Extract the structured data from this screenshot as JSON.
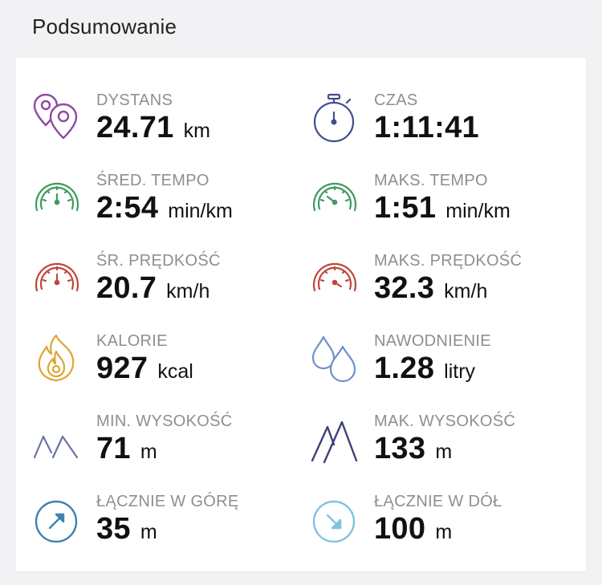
{
  "section": {
    "title": "Podsumowanie"
  },
  "colors": {
    "distance": "#8e4aa3",
    "time": "#3f4d8c",
    "pace": "#3e9a5e",
    "speed": "#c0463b",
    "calories": "#e0a431",
    "hydration": "#6f8fd0",
    "elevation_min": "#6a74a3",
    "elevation_max": "#3d4177",
    "ascent": "#3d82b0",
    "descent": "#7fc3dc"
  },
  "stats": [
    {
      "key": "distance",
      "label": "DYSTANS",
      "value": "24.71",
      "unit": "km",
      "icon": "map-pins-icon"
    },
    {
      "key": "time",
      "label": "CZAS",
      "value": "1:11:41",
      "unit": "",
      "icon": "stopwatch-icon"
    },
    {
      "key": "avg_pace",
      "label": "ŚRED. TEMPO",
      "value": "2:54",
      "unit": "min/km",
      "icon": "gauge-icon"
    },
    {
      "key": "max_pace",
      "label": "MAKS. TEMPO",
      "value": "1:51",
      "unit": "min/km",
      "icon": "gauge-icon"
    },
    {
      "key": "avg_speed",
      "label": "ŚR. PRĘDKOŚĆ",
      "value": "20.7",
      "unit": "km/h",
      "icon": "gauge-icon"
    },
    {
      "key": "max_speed",
      "label": "MAKS. PRĘDKOŚĆ",
      "value": "32.3",
      "unit": "km/h",
      "icon": "gauge-icon"
    },
    {
      "key": "calories",
      "label": "KALORIE",
      "value": "927",
      "unit": "kcal",
      "icon": "flame-icon"
    },
    {
      "key": "hydration",
      "label": "NAWODNIENIE",
      "value": "1.28",
      "unit": "litry",
      "icon": "water-drops-icon"
    },
    {
      "key": "min_elevation",
      "label": "MIN. WYSOKOŚĆ",
      "value": "71",
      "unit": "m",
      "icon": "mountains-icon"
    },
    {
      "key": "max_elevation",
      "label": "MAK. WYSOKOŚĆ",
      "value": "133",
      "unit": "m",
      "icon": "mountains-icon"
    },
    {
      "key": "ascent",
      "label": "ŁĄCZNIE W GÓRĘ",
      "value": "35",
      "unit": "m",
      "icon": "arrow-up-right-icon"
    },
    {
      "key": "descent",
      "label": "ŁĄCZNIE W DÓŁ",
      "value": "100",
      "unit": "m",
      "icon": "arrow-down-right-icon"
    }
  ]
}
